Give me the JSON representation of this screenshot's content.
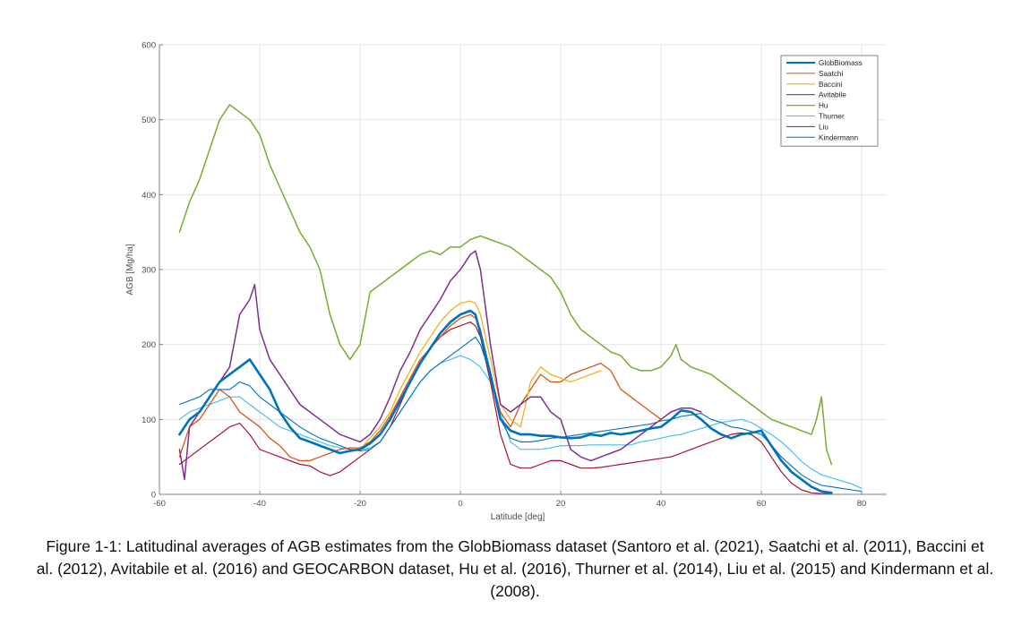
{
  "caption": "Figure 1-1: Latitudinal averages of AGB estimates from the GlobBiomass dataset (Santoro et al. (2021), Saatchi et al. (2011), Baccini et al. (2012), Avitabile et al. (2016) and GEOCARBON dataset, Hu et al. (2016), Thurner et al. (2014), Liu et al. (2015) and Kindermann et al. (2008).",
  "chart_data": {
    "type": "line",
    "xlabel": "Latitude  [deg]",
    "ylabel": "AGB  [Mg/ha]",
    "xlim": [
      -60,
      85
    ],
    "ylim": [
      0,
      600
    ],
    "xticks": [
      -60,
      -40,
      -20,
      0,
      20,
      40,
      60,
      80
    ],
    "yticks": [
      0,
      100,
      200,
      300,
      400,
      500,
      600
    ],
    "grid": true,
    "legend_position": "top-right",
    "series": [
      {
        "name": "GlobBiomass",
        "color": "#0072bd",
        "width": 2.6,
        "x": [
          -56,
          -54,
          -52,
          -50,
          -48,
          -46,
          -44,
          -42,
          -40,
          -38,
          -36,
          -34,
          -32,
          -30,
          -28,
          -26,
          -24,
          -22,
          -20,
          -18,
          -16,
          -14,
          -12,
          -10,
          -8,
          -6,
          -4,
          -2,
          0,
          2,
          3,
          4,
          6,
          8,
          10,
          12,
          14,
          16,
          18,
          20,
          22,
          24,
          26,
          28,
          30,
          32,
          34,
          36,
          38,
          40,
          42,
          44,
          46,
          48,
          50,
          52,
          54,
          56,
          58,
          60,
          62,
          64,
          66,
          68,
          70,
          72,
          74
        ],
        "y": [
          80,
          100,
          110,
          130,
          150,
          160,
          170,
          180,
          160,
          140,
          110,
          90,
          75,
          70,
          65,
          60,
          55,
          58,
          60,
          68,
          80,
          100,
          125,
          150,
          175,
          195,
          215,
          230,
          240,
          245,
          240,
          215,
          160,
          100,
          85,
          80,
          80,
          78,
          78,
          76,
          75,
          76,
          80,
          78,
          82,
          80,
          82,
          85,
          88,
          90,
          100,
          112,
          110,
          100,
          88,
          80,
          75,
          80,
          82,
          85,
          65,
          45,
          30,
          20,
          10,
          4,
          2
        ]
      },
      {
        "name": "Saatchi",
        "color": "#d95319",
        "width": 1.3,
        "x": [
          -56,
          -54,
          -52,
          -50,
          -48,
          -46,
          -44,
          -42,
          -40,
          -38,
          -36,
          -34,
          -32,
          -30,
          -28,
          -26,
          -24,
          -22,
          -20,
          -18,
          -16,
          -14,
          -12,
          -10,
          -8,
          -6,
          -4,
          -2,
          0,
          2,
          3,
          4,
          6,
          8,
          10,
          12,
          14,
          16,
          18,
          20,
          22,
          24,
          26,
          28,
          30,
          32,
          34,
          36,
          38,
          40
        ],
        "y": [
          50,
          90,
          100,
          120,
          140,
          130,
          110,
          100,
          90,
          75,
          65,
          50,
          45,
          45,
          50,
          55,
          60,
          62,
          62,
          70,
          85,
          105,
          130,
          155,
          180,
          195,
          210,
          225,
          235,
          240,
          235,
          220,
          160,
          110,
          90,
          120,
          140,
          160,
          150,
          150,
          160,
          165,
          170,
          175,
          165,
          140,
          130,
          120,
          110,
          100
        ]
      },
      {
        "name": "Baccini",
        "color": "#edb120",
        "width": 1.3,
        "x": [
          -20,
          -18,
          -16,
          -14,
          -12,
          -10,
          -8,
          -6,
          -4,
          -2,
          0,
          2,
          3,
          4,
          6,
          8,
          10,
          12,
          14,
          16,
          18,
          20,
          22,
          24,
          26,
          28
        ],
        "y": [
          60,
          75,
          90,
          110,
          140,
          165,
          190,
          210,
          230,
          245,
          255,
          258,
          255,
          240,
          180,
          120,
          100,
          90,
          150,
          170,
          160,
          155,
          150,
          155,
          160,
          165
        ]
      },
      {
        "name": "Avitabile",
        "color": "#7e2f8e",
        "width": 1.5,
        "x": [
          -56,
          -55,
          -54,
          -52,
          -50,
          -48,
          -46,
          -44,
          -42,
          -41,
          -40,
          -38,
          -36,
          -34,
          -32,
          -30,
          -28,
          -26,
          -24,
          -22,
          -20,
          -18,
          -16,
          -14,
          -12,
          -10,
          -8,
          -6,
          -4,
          -2,
          0,
          2,
          3,
          4,
          6,
          8,
          10,
          12,
          14,
          16,
          18,
          20,
          22,
          24,
          26,
          28,
          30,
          32,
          34,
          36,
          38,
          40,
          42,
          44,
          46,
          48
        ],
        "y": [
          60,
          20,
          90,
          110,
          130,
          150,
          170,
          240,
          260,
          280,
          220,
          180,
          160,
          140,
          120,
          110,
          100,
          90,
          80,
          75,
          70,
          80,
          100,
          130,
          165,
          190,
          220,
          240,
          260,
          285,
          300,
          320,
          325,
          300,
          200,
          120,
          110,
          120,
          130,
          130,
          110,
          100,
          60,
          50,
          45,
          50,
          55,
          60,
          70,
          80,
          90,
          100,
          110,
          115,
          115,
          110
        ]
      },
      {
        "name": "Hu",
        "color": "#77ac30",
        "width": 1.5,
        "x": [
          -56,
          -54,
          -52,
          -50,
          -48,
          -46,
          -44,
          -42,
          -40,
          -38,
          -36,
          -34,
          -32,
          -30,
          -28,
          -26,
          -24,
          -22,
          -20,
          -18,
          -16,
          -14,
          -12,
          -10,
          -8,
          -6,
          -4,
          -2,
          0,
          2,
          4,
          6,
          8,
          10,
          12,
          14,
          16,
          18,
          20,
          22,
          24,
          26,
          28,
          30,
          32,
          34,
          36,
          38,
          40,
          42,
          43,
          44,
          46,
          48,
          50,
          52,
          54,
          56,
          58,
          60,
          62,
          64,
          66,
          68,
          70,
          71,
          72,
          73,
          74
        ],
        "y": [
          350,
          390,
          420,
          460,
          500,
          520,
          510,
          500,
          480,
          440,
          410,
          380,
          350,
          330,
          300,
          240,
          200,
          180,
          200,
          270,
          280,
          290,
          300,
          310,
          320,
          325,
          320,
          330,
          330,
          340,
          345,
          340,
          335,
          330,
          320,
          310,
          300,
          290,
          270,
          240,
          220,
          210,
          200,
          190,
          185,
          170,
          165,
          165,
          170,
          185,
          200,
          180,
          170,
          165,
          160,
          150,
          140,
          130,
          120,
          110,
          100,
          95,
          90,
          85,
          80,
          100,
          130,
          60,
          40
        ]
      },
      {
        "name": "Thurner",
        "color": "#4dbeee",
        "width": 1.2,
        "x": [
          -56,
          -54,
          -52,
          -50,
          -48,
          -46,
          -44,
          -42,
          -40,
          -38,
          -36,
          -34,
          -32,
          -30,
          -28,
          -26,
          -24,
          -22,
          -20,
          -18,
          -16,
          -14,
          -12,
          -10,
          -8,
          -6,
          -4,
          -2,
          0,
          2,
          4,
          6,
          8,
          10,
          12,
          14,
          16,
          18,
          20,
          22,
          24,
          26,
          28,
          30,
          32,
          34,
          36,
          38,
          40,
          42,
          44,
          46,
          48,
          50,
          52,
          54,
          56,
          58,
          60,
          62,
          64,
          66,
          68,
          70,
          72,
          74,
          76,
          78,
          80
        ],
        "y": [
          100,
          110,
          115,
          120,
          125,
          130,
          130,
          120,
          110,
          100,
          90,
          85,
          80,
          75,
          70,
          65,
          62,
          60,
          60,
          62,
          70,
          90,
          110,
          130,
          150,
          165,
          175,
          180,
          185,
          180,
          170,
          150,
          110,
          70,
          60,
          60,
          60,
          62,
          65,
          65,
          65,
          66,
          66,
          66,
          66,
          66,
          70,
          72,
          75,
          78,
          80,
          84,
          88,
          92,
          96,
          98,
          100,
          96,
          88,
          80,
          70,
          58,
          44,
          34,
          26,
          22,
          18,
          14,
          8
        ]
      },
      {
        "name": "Liu",
        "color": "#a2142f",
        "width": 1.2,
        "x": [
          -56,
          -54,
          -52,
          -50,
          -48,
          -46,
          -44,
          -42,
          -40,
          -38,
          -36,
          -34,
          -32,
          -30,
          -28,
          -26,
          -24,
          -22,
          -20,
          -18,
          -16,
          -14,
          -12,
          -10,
          -8,
          -6,
          -4,
          -2,
          0,
          2,
          3,
          4,
          6,
          8,
          10,
          12,
          14,
          16,
          18,
          20,
          22,
          24,
          26,
          28,
          30,
          32,
          34,
          36,
          38,
          40,
          42,
          44,
          46,
          48,
          50,
          52,
          54,
          56,
          58,
          60,
          62,
          64,
          66,
          68,
          70,
          72,
          74
        ],
        "y": [
          40,
          50,
          60,
          70,
          80,
          90,
          95,
          80,
          60,
          55,
          50,
          45,
          40,
          38,
          30,
          25,
          30,
          40,
          50,
          60,
          70,
          90,
          120,
          150,
          175,
          195,
          210,
          220,
          225,
          230,
          225,
          210,
          150,
          80,
          40,
          35,
          35,
          40,
          45,
          45,
          40,
          35,
          35,
          36,
          38,
          40,
          42,
          44,
          46,
          48,
          50,
          55,
          60,
          65,
          70,
          75,
          80,
          82,
          80,
          70,
          50,
          30,
          15,
          6,
          2,
          1,
          1
        ]
      },
      {
        "name": "Kindermann",
        "color": "#0072bd",
        "width": 1.1,
        "x": [
          -56,
          -54,
          -52,
          -50,
          -48,
          -46,
          -44,
          -42,
          -40,
          -38,
          -36,
          -34,
          -32,
          -30,
          -28,
          -26,
          -24,
          -22,
          -20,
          -18,
          -16,
          -14,
          -12,
          -10,
          -8,
          -6,
          -4,
          -2,
          0,
          2,
          3,
          4,
          6,
          8,
          10,
          12,
          14,
          16,
          18,
          20,
          22,
          24,
          26,
          28,
          30,
          32,
          34,
          36,
          38,
          40,
          42,
          44,
          46,
          48,
          50,
          52,
          54,
          56,
          58,
          60,
          62,
          64,
          66,
          68,
          70,
          72,
          74,
          76,
          78,
          80
        ],
        "y": [
          120,
          125,
          130,
          140,
          140,
          140,
          150,
          145,
          130,
          120,
          110,
          100,
          90,
          82,
          75,
          70,
          65,
          60,
          58,
          60,
          70,
          90,
          110,
          130,
          150,
          165,
          175,
          185,
          195,
          205,
          210,
          200,
          160,
          100,
          75,
          70,
          70,
          72,
          75,
          76,
          78,
          80,
          82,
          84,
          86,
          88,
          90,
          92,
          94,
          98,
          100,
          104,
          106,
          108,
          100,
          96,
          90,
          88,
          84,
          80,
          66,
          50,
          38,
          26,
          18,
          12,
          10,
          8,
          6,
          4
        ]
      }
    ]
  }
}
